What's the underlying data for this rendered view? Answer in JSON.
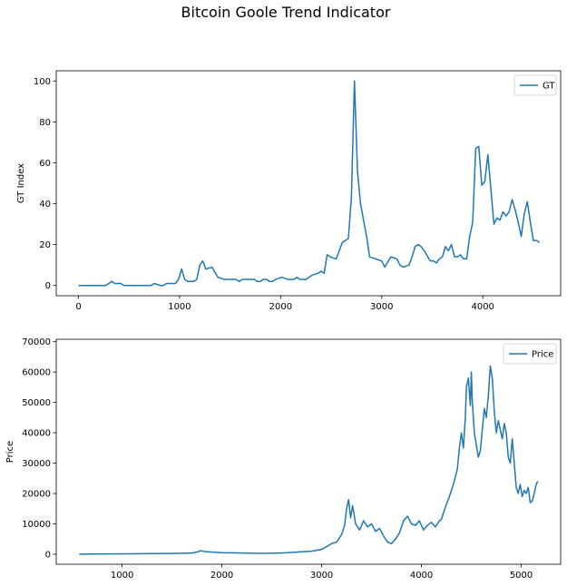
{
  "figure": {
    "title": "Bitcoin Goole Trend Indicator"
  },
  "chart_data": [
    {
      "type": "line",
      "title": "",
      "xlabel": "",
      "ylabel": "GT Index",
      "xlim": [
        -220,
        4770
      ],
      "ylim": [
        -5,
        105
      ],
      "xticks": [
        0,
        1000,
        2000,
        3000,
        4000
      ],
      "yticks": [
        0,
        20,
        40,
        60,
        80,
        100
      ],
      "grid": false,
      "legend_position": "top-right",
      "color": "#1f77b4",
      "series": [
        {
          "name": "GT",
          "x": [
            0,
            90,
            180,
            270,
            300,
            330,
            360,
            420,
            450,
            480,
            540,
            600,
            660,
            720,
            750,
            810,
            840,
            870,
            900,
            960,
            990,
            1020,
            1050,
            1080,
            1140,
            1170,
            1200,
            1230,
            1260,
            1320,
            1380,
            1440,
            1500,
            1560,
            1590,
            1620,
            1680,
            1740,
            1770,
            1800,
            1830,
            1860,
            1890,
            1920,
            1950,
            2010,
            2070,
            2100,
            2130,
            2160,
            2190,
            2250,
            2310,
            2370,
            2400,
            2430,
            2460,
            2490,
            2550,
            2610,
            2640,
            2670,
            2700,
            2730,
            2760,
            2790,
            2850,
            2880,
            2940,
            3000,
            3030,
            3090,
            3150,
            3180,
            3210,
            3270,
            3300,
            3330,
            3360,
            3390,
            3420,
            3480,
            3510,
            3540,
            3570,
            3600,
            3630,
            3660,
            3690,
            3720,
            3750,
            3780,
            3810,
            3840,
            3870,
            3900,
            3930,
            3960,
            3990,
            4020,
            4050,
            4080,
            4110,
            4140,
            4170,
            4200,
            4230,
            4260,
            4290,
            4320,
            4350,
            4380,
            4410,
            4440,
            4470,
            4500,
            4530,
            4560
          ],
          "y": [
            0,
            0,
            0,
            0,
            1,
            2,
            1,
            1,
            0,
            0,
            0,
            0,
            0,
            0,
            1,
            0,
            0,
            1,
            1,
            1,
            3,
            8,
            3,
            2,
            2,
            3,
            10,
            12,
            8,
            9,
            4,
            3,
            3,
            3,
            2,
            3,
            3,
            3,
            2,
            2,
            3,
            3,
            2,
            2,
            3,
            4,
            3,
            3,
            3,
            4,
            3,
            3,
            5,
            6,
            7,
            6,
            15,
            14,
            13,
            21,
            22,
            23,
            43,
            100,
            56,
            40,
            24,
            14,
            13,
            12,
            9,
            14,
            13,
            10,
            9,
            10,
            14,
            19,
            20,
            19,
            17,
            12,
            12,
            11,
            13,
            14,
            19,
            17,
            20,
            14,
            14,
            15,
            13,
            13,
            24,
            31,
            67,
            68,
            49,
            51,
            64,
            47,
            30,
            33,
            32,
            36,
            34,
            36,
            42,
            37,
            31,
            24,
            35,
            41,
            31,
            22,
            22,
            21
          ]
        }
      ]
    },
    {
      "type": "line",
      "title": "",
      "xlabel": "",
      "ylabel": "Price",
      "xlim": [
        340,
        5395
      ],
      "ylim": [
        -3300,
        70800
      ],
      "xticks": [
        1000,
        2000,
        3000,
        4000,
        5000
      ],
      "yticks": [
        0,
        10000,
        20000,
        30000,
        40000,
        50000,
        60000,
        70000
      ],
      "grid": false,
      "legend_position": "top-right",
      "color": "#1f77b4",
      "series": [
        {
          "name": "Price",
          "x": [
            570,
            700,
            900,
            1100,
            1300,
            1500,
            1700,
            1760,
            1790,
            1820,
            1900,
            2000,
            2200,
            2400,
            2600,
            2700,
            2800,
            2900,
            3000,
            3050,
            3100,
            3150,
            3200,
            3230,
            3250,
            3270,
            3290,
            3310,
            3340,
            3380,
            3420,
            3460,
            3500,
            3540,
            3580,
            3620,
            3660,
            3700,
            3740,
            3780,
            3800,
            3820,
            3860,
            3900,
            3940,
            3980,
            4020,
            4060,
            4100,
            4140,
            4180,
            4200,
            4240,
            4280,
            4320,
            4360,
            4380,
            4400,
            4420,
            4440,
            4450,
            4470,
            4490,
            4500,
            4510,
            4530,
            4550,
            4570,
            4590,
            4610,
            4630,
            4650,
            4670,
            4690,
            4710,
            4730,
            4750,
            4770,
            4790,
            4810,
            4830,
            4850,
            4870,
            4890,
            4910,
            4930,
            4950,
            4970,
            4990,
            5010,
            5030,
            5050,
            5070,
            5090,
            5110,
            5130,
            5150,
            5165
          ],
          "y": [
            0,
            50,
            100,
            150,
            200,
            250,
            400,
            800,
            1200,
            900,
            700,
            500,
            400,
            300,
            400,
            600,
            800,
            1000,
            1600,
            2500,
            3500,
            4000,
            6500,
            9500,
            15000,
            18000,
            12000,
            16000,
            10000,
            8000,
            11000,
            9000,
            10000,
            7500,
            8500,
            6000,
            4000,
            3500,
            5000,
            7000,
            9000,
            11000,
            12500,
            10000,
            9500,
            11000,
            8000,
            9500,
            10500,
            9000,
            11000,
            11500,
            15500,
            19000,
            23000,
            28000,
            35000,
            40000,
            35000,
            45000,
            55000,
            58000,
            49000,
            60000,
            50000,
            40000,
            36000,
            32000,
            34000,
            41000,
            48000,
            45000,
            52000,
            62000,
            58000,
            47000,
            40000,
            44000,
            41000,
            38000,
            43000,
            40000,
            32000,
            30000,
            38000,
            30000,
            22000,
            20000,
            23000,
            19000,
            21000,
            20000,
            22000,
            17000,
            17500,
            20000,
            23000,
            24000
          ]
        }
      ]
    }
  ]
}
